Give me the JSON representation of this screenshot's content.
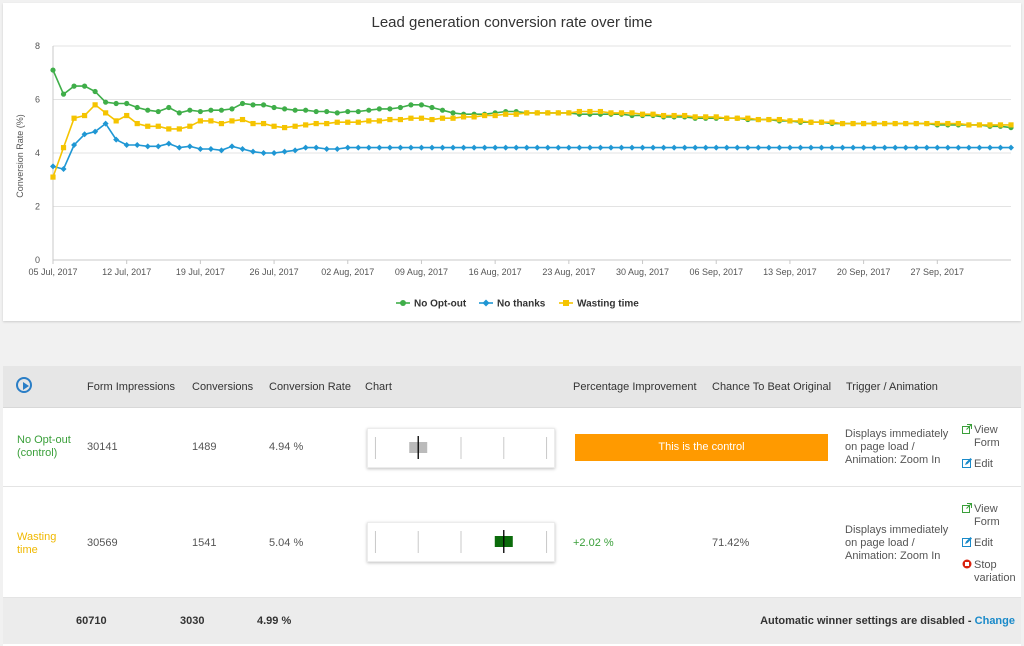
{
  "chart_data": {
    "type": "line",
    "title": "Lead generation conversion rate over time",
    "ylabel": "Conversion Rate (%)",
    "ylim": [
      0,
      8
    ],
    "yticks": [
      0,
      2,
      4,
      6,
      8
    ],
    "x_start": "05 Jul, 2017",
    "x_end": "03 Oct, 2017",
    "xticks": [
      "05 Jul, 2017",
      "12 Jul, 2017",
      "19 Jul, 2017",
      "26 Jul, 2017",
      "02 Aug, 2017",
      "09 Aug, 2017",
      "16 Aug, 2017",
      "23 Aug, 2017",
      "30 Aug, 2017",
      "06 Sep, 2017",
      "13 Sep, 2017",
      "20 Sep, 2017",
      "27 Sep, 2017"
    ],
    "legend_position": "bottom-center",
    "series": [
      {
        "name": "No Opt-out",
        "color": "#3fae49",
        "marker": "circle",
        "values": [
          7.1,
          6.2,
          6.5,
          6.5,
          6.3,
          5.9,
          5.85,
          5.85,
          5.7,
          5.6,
          5.55,
          5.7,
          5.5,
          5.6,
          5.55,
          5.6,
          5.6,
          5.65,
          5.85,
          5.8,
          5.8,
          5.7,
          5.65,
          5.6,
          5.6,
          5.55,
          5.55,
          5.5,
          5.55,
          5.55,
          5.6,
          5.65,
          5.65,
          5.7,
          5.8,
          5.8,
          5.7,
          5.6,
          5.5,
          5.45,
          5.45,
          5.45,
          5.5,
          5.55,
          5.55,
          5.5,
          5.5,
          5.5,
          5.5,
          5.5,
          5.45,
          5.45,
          5.45,
          5.45,
          5.45,
          5.4,
          5.4,
          5.4,
          5.35,
          5.35,
          5.35,
          5.3,
          5.3,
          5.3,
          5.3,
          5.3,
          5.25,
          5.25,
          5.25,
          5.2,
          5.2,
          5.15,
          5.15,
          5.15,
          5.1,
          5.1,
          5.1,
          5.1,
          5.1,
          5.1,
          5.1,
          5.1,
          5.1,
          5.1,
          5.05,
          5.05,
          5.05,
          5.05,
          5.05,
          5.0,
          5.0,
          4.95
        ]
      },
      {
        "name": "No thanks",
        "color": "#1f97d4",
        "marker": "diamond",
        "values": [
          3.5,
          3.4,
          4.3,
          4.7,
          4.8,
          5.1,
          4.5,
          4.3,
          4.3,
          4.25,
          4.25,
          4.35,
          4.2,
          4.25,
          4.15,
          4.15,
          4.1,
          4.25,
          4.15,
          4.05,
          4.0,
          4.0,
          4.05,
          4.1,
          4.2,
          4.2,
          4.15,
          4.15,
          4.2,
          4.2,
          4.2,
          4.2,
          4.2,
          4.2,
          4.2,
          4.2,
          4.2,
          4.2,
          4.2,
          4.2,
          4.2,
          4.2,
          4.2,
          4.2,
          4.2,
          4.2,
          4.2,
          4.2,
          4.2,
          4.2,
          4.2,
          4.2,
          4.2,
          4.2,
          4.2,
          4.2,
          4.2,
          4.2,
          4.2,
          4.2,
          4.2,
          4.2,
          4.2,
          4.2,
          4.2,
          4.2,
          4.2,
          4.2,
          4.2,
          4.2,
          4.2,
          4.2,
          4.2,
          4.2,
          4.2,
          4.2,
          4.2,
          4.2,
          4.2,
          4.2,
          4.2,
          4.2,
          4.2,
          4.2,
          4.2,
          4.2,
          4.2,
          4.2,
          4.2,
          4.2,
          4.2,
          4.2
        ]
      },
      {
        "name": "Wasting time",
        "color": "#f5c400",
        "marker": "square",
        "values": [
          3.1,
          4.2,
          5.3,
          5.4,
          5.8,
          5.5,
          5.2,
          5.4,
          5.1,
          5.0,
          5.0,
          4.9,
          4.9,
          5.0,
          5.2,
          5.2,
          5.1,
          5.2,
          5.25,
          5.1,
          5.1,
          5.0,
          4.95,
          5.0,
          5.05,
          5.1,
          5.1,
          5.15,
          5.15,
          5.15,
          5.2,
          5.2,
          5.25,
          5.25,
          5.3,
          5.3,
          5.25,
          5.3,
          5.3,
          5.35,
          5.35,
          5.4,
          5.4,
          5.45,
          5.45,
          5.5,
          5.5,
          5.5,
          5.5,
          5.5,
          5.55,
          5.55,
          5.55,
          5.5,
          5.5,
          5.5,
          5.45,
          5.45,
          5.4,
          5.4,
          5.4,
          5.35,
          5.35,
          5.35,
          5.3,
          5.3,
          5.3,
          5.25,
          5.25,
          5.25,
          5.2,
          5.2,
          5.15,
          5.15,
          5.15,
          5.1,
          5.1,
          5.1,
          5.1,
          5.1,
          5.1,
          5.1,
          5.1,
          5.1,
          5.1,
          5.1,
          5.1,
          5.05,
          5.05,
          5.05,
          5.05,
          5.05
        ]
      }
    ]
  },
  "table": {
    "headers": {
      "impressions": "Form Impressions",
      "conversions": "Conversions",
      "rate": "Conversion Rate",
      "chart": "Chart",
      "improvement": "Percentage Improvement",
      "chance": "Chance To Beat Original",
      "trigger": "Trigger / Animation"
    },
    "rows": [
      {
        "name": "No Opt-out (control)",
        "color": "#3a9f3a",
        "impressions": "30141",
        "conversions": "1489",
        "rate": "4.94 %",
        "control_label": "This is the control",
        "box_color": "#bbbbbb",
        "box_position": 0.27,
        "trigger": "Displays immediately on page load / Animation: Zoom In",
        "actions": [
          "View Form",
          "Edit"
        ]
      },
      {
        "name": "Wasting time",
        "color": "#f0b800",
        "impressions": "30569",
        "conversions": "1541",
        "rate": "5.04 %",
        "improvement": "+2.02 %",
        "chance": "71.42%",
        "box_color": "#0b6b0b",
        "box_position": 0.73,
        "trigger": "Displays immediately on page load / Animation: Zoom In",
        "actions": [
          "View Form",
          "Edit",
          "Stop variation"
        ]
      }
    ],
    "footer": {
      "impressions": "60710",
      "conversions": "3030",
      "rate": "4.99 %",
      "winner_text": "Automatic winner settings are disabled - ",
      "change_label": "Change"
    }
  },
  "icons": {
    "play": "play-circle-icon",
    "view": "external-link-icon",
    "edit": "edit-icon",
    "stop": "stop-circle-icon"
  }
}
